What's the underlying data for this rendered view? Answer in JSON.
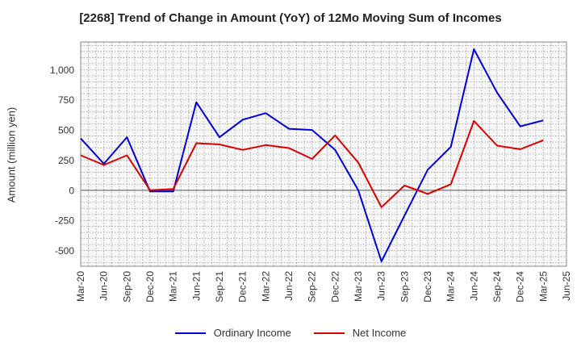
{
  "chart_data": {
    "type": "line",
    "title": "[2268]  Trend of Change in Amount (YoY) of 12Mo Moving Sum of Incomes",
    "ylabel": "Amount (million yen)",
    "xlabel": "",
    "categories": [
      "Mar-20",
      "Jun-20",
      "Sep-20",
      "Dec-20",
      "Mar-21",
      "Jun-21",
      "Sep-21",
      "Dec-21",
      "Mar-22",
      "Jun-22",
      "Sep-22",
      "Dec-22",
      "Mar-23",
      "Jun-23",
      "Sep-23",
      "Dec-23",
      "Mar-24",
      "Jun-24",
      "Sep-24",
      "Dec-24",
      "Mar-25",
      "Jun-25"
    ],
    "yticks": [
      -500,
      -250,
      0,
      250,
      500,
      750,
      1000
    ],
    "ytick_labels": [
      "-500",
      "-250",
      "0",
      "250",
      "500",
      "750",
      "1,000"
    ],
    "ylim": [
      -630,
      1230
    ],
    "grid": true,
    "legend_position": "bottom",
    "series": [
      {
        "name": "Ordinary Income",
        "color": "#0000dd",
        "values": [
          430,
          220,
          440,
          -10,
          -10,
          730,
          440,
          585,
          640,
          510,
          500,
          335,
          0,
          -590,
          -210,
          170,
          360,
          1170,
          810,
          530,
          580,
          null
        ]
      },
      {
        "name": "Net Income",
        "color": "#dd0000",
        "values": [
          290,
          210,
          290,
          0,
          10,
          390,
          380,
          335,
          375,
          350,
          260,
          455,
          230,
          -140,
          40,
          -30,
          50,
          575,
          370,
          340,
          415,
          null
        ]
      }
    ]
  }
}
